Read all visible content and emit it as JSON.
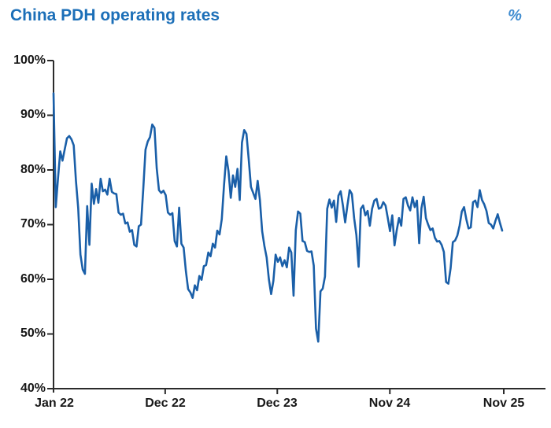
{
  "title": "China PDH operating rates",
  "unit_label": "%",
  "colors": {
    "title": "#1C6FB8",
    "unit": "#3F8CD0",
    "line": "#1A5FA8",
    "axis": "#2B2B2B",
    "tick_text": "#171717",
    "background": "#FFFFFF"
  },
  "chart_data": {
    "type": "line",
    "title": "China PDH operating rates",
    "ylabel": "%",
    "ylim": [
      40,
      100
    ],
    "grid": false,
    "legend": "none",
    "frequency": "weekly",
    "yticks": {
      "values": [
        100,
        90,
        80,
        70,
        60,
        50,
        40
      ],
      "labels": [
        "100%",
        "90%",
        "80%",
        "70%",
        "60%",
        "50%",
        "40%"
      ]
    },
    "xticks": {
      "labels": [
        "Jan 22",
        "Dec 22",
        "Dec 23",
        "Nov 24",
        "Nov 25"
      ],
      "fracs": [
        0.0,
        0.248,
        0.497,
        0.747,
        1.0
      ]
    },
    "series": [
      {
        "name": "China PDH operating rate",
        "unit": "%",
        "values": [
          94.0,
          73.2,
          78.5,
          83.4,
          81.7,
          83.8,
          85.8,
          86.2,
          85.6,
          84.5,
          78.0,
          73.0,
          64.5,
          61.8,
          61.0,
          73.4,
          66.3,
          77.5,
          73.8,
          76.5,
          74.0,
          78.4,
          76.1,
          76.4,
          75.5,
          78.4,
          76.0,
          75.7,
          75.6,
          72.2,
          71.8,
          72.0,
          70.2,
          70.4,
          68.7,
          69.0,
          66.3,
          66.0,
          69.7,
          70.0,
          76.5,
          83.7,
          85.2,
          86.0,
          88.3,
          87.7,
          80.3,
          76.3,
          75.8,
          76.2,
          75.4,
          72.2,
          71.8,
          72.1,
          67.0,
          66.0,
          73.1,
          66.5,
          65.8,
          61.5,
          58.2,
          57.6,
          56.6,
          58.9,
          58.0,
          60.6,
          59.9,
          62.4,
          62.6,
          64.9,
          64.2,
          66.5,
          65.8,
          68.9,
          68.2,
          71.0,
          77.2,
          82.5,
          79.8,
          74.9,
          79.0,
          76.9,
          80.2,
          74.5,
          85.0,
          87.3,
          86.6,
          82.0,
          76.9,
          75.8,
          74.7,
          78.0,
          74.5,
          68.8,
          66.1,
          64.0,
          60.0,
          57.3,
          59.7,
          64.5,
          63.2,
          64.0,
          62.4,
          63.5,
          62.2,
          65.8,
          64.9,
          57.0,
          69.0,
          72.4,
          72.0,
          67.0,
          66.8,
          65.2,
          65.0,
          65.1,
          62.5,
          51.0,
          48.6,
          57.8,
          58.3,
          60.5,
          72.9,
          74.6,
          73.1,
          74.4,
          70.5,
          75.3,
          76.1,
          73.5,
          70.4,
          73.5,
          76.3,
          75.6,
          71.2,
          68.1,
          62.3,
          72.9,
          73.5,
          71.7,
          72.5,
          69.8,
          72.9,
          74.4,
          74.7,
          72.9,
          73.1,
          74.1,
          73.5,
          71.2,
          68.8,
          71.7,
          66.2,
          69.0,
          71.2,
          69.8,
          74.7,
          75.0,
          73.5,
          72.6,
          75.0,
          73.2,
          74.4,
          66.6,
          73.0,
          75.1,
          71.2,
          70.0,
          69.0,
          69.3,
          67.6,
          66.9,
          67.0,
          66.3,
          65.0,
          59.5,
          59.2,
          62.0,
          66.8,
          67.1,
          68.0,
          69.8,
          72.4,
          73.2,
          71.0,
          69.3,
          69.5,
          74.1,
          74.4,
          73.2,
          76.3,
          74.5,
          73.7,
          72.5,
          70.3,
          70.0,
          69.3,
          70.7,
          71.9,
          70.3,
          68.9
        ]
      }
    ]
  }
}
